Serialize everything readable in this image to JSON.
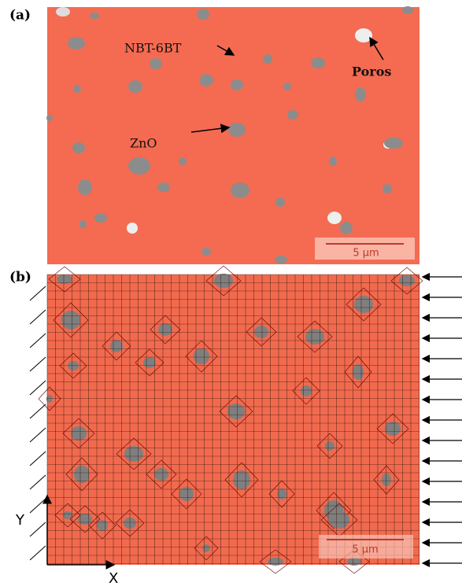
{
  "panel_a": {
    "label": "(a)",
    "annotations": {
      "matrix": "NBT-6BT",
      "pores": "Poros",
      "particle": "ZnO"
    },
    "scale_bar": "5 µm"
  },
  "panel_b": {
    "label": "(b)",
    "scale_bar": "5 µm",
    "axis_y": "Y",
    "axis_x": "X"
  }
}
